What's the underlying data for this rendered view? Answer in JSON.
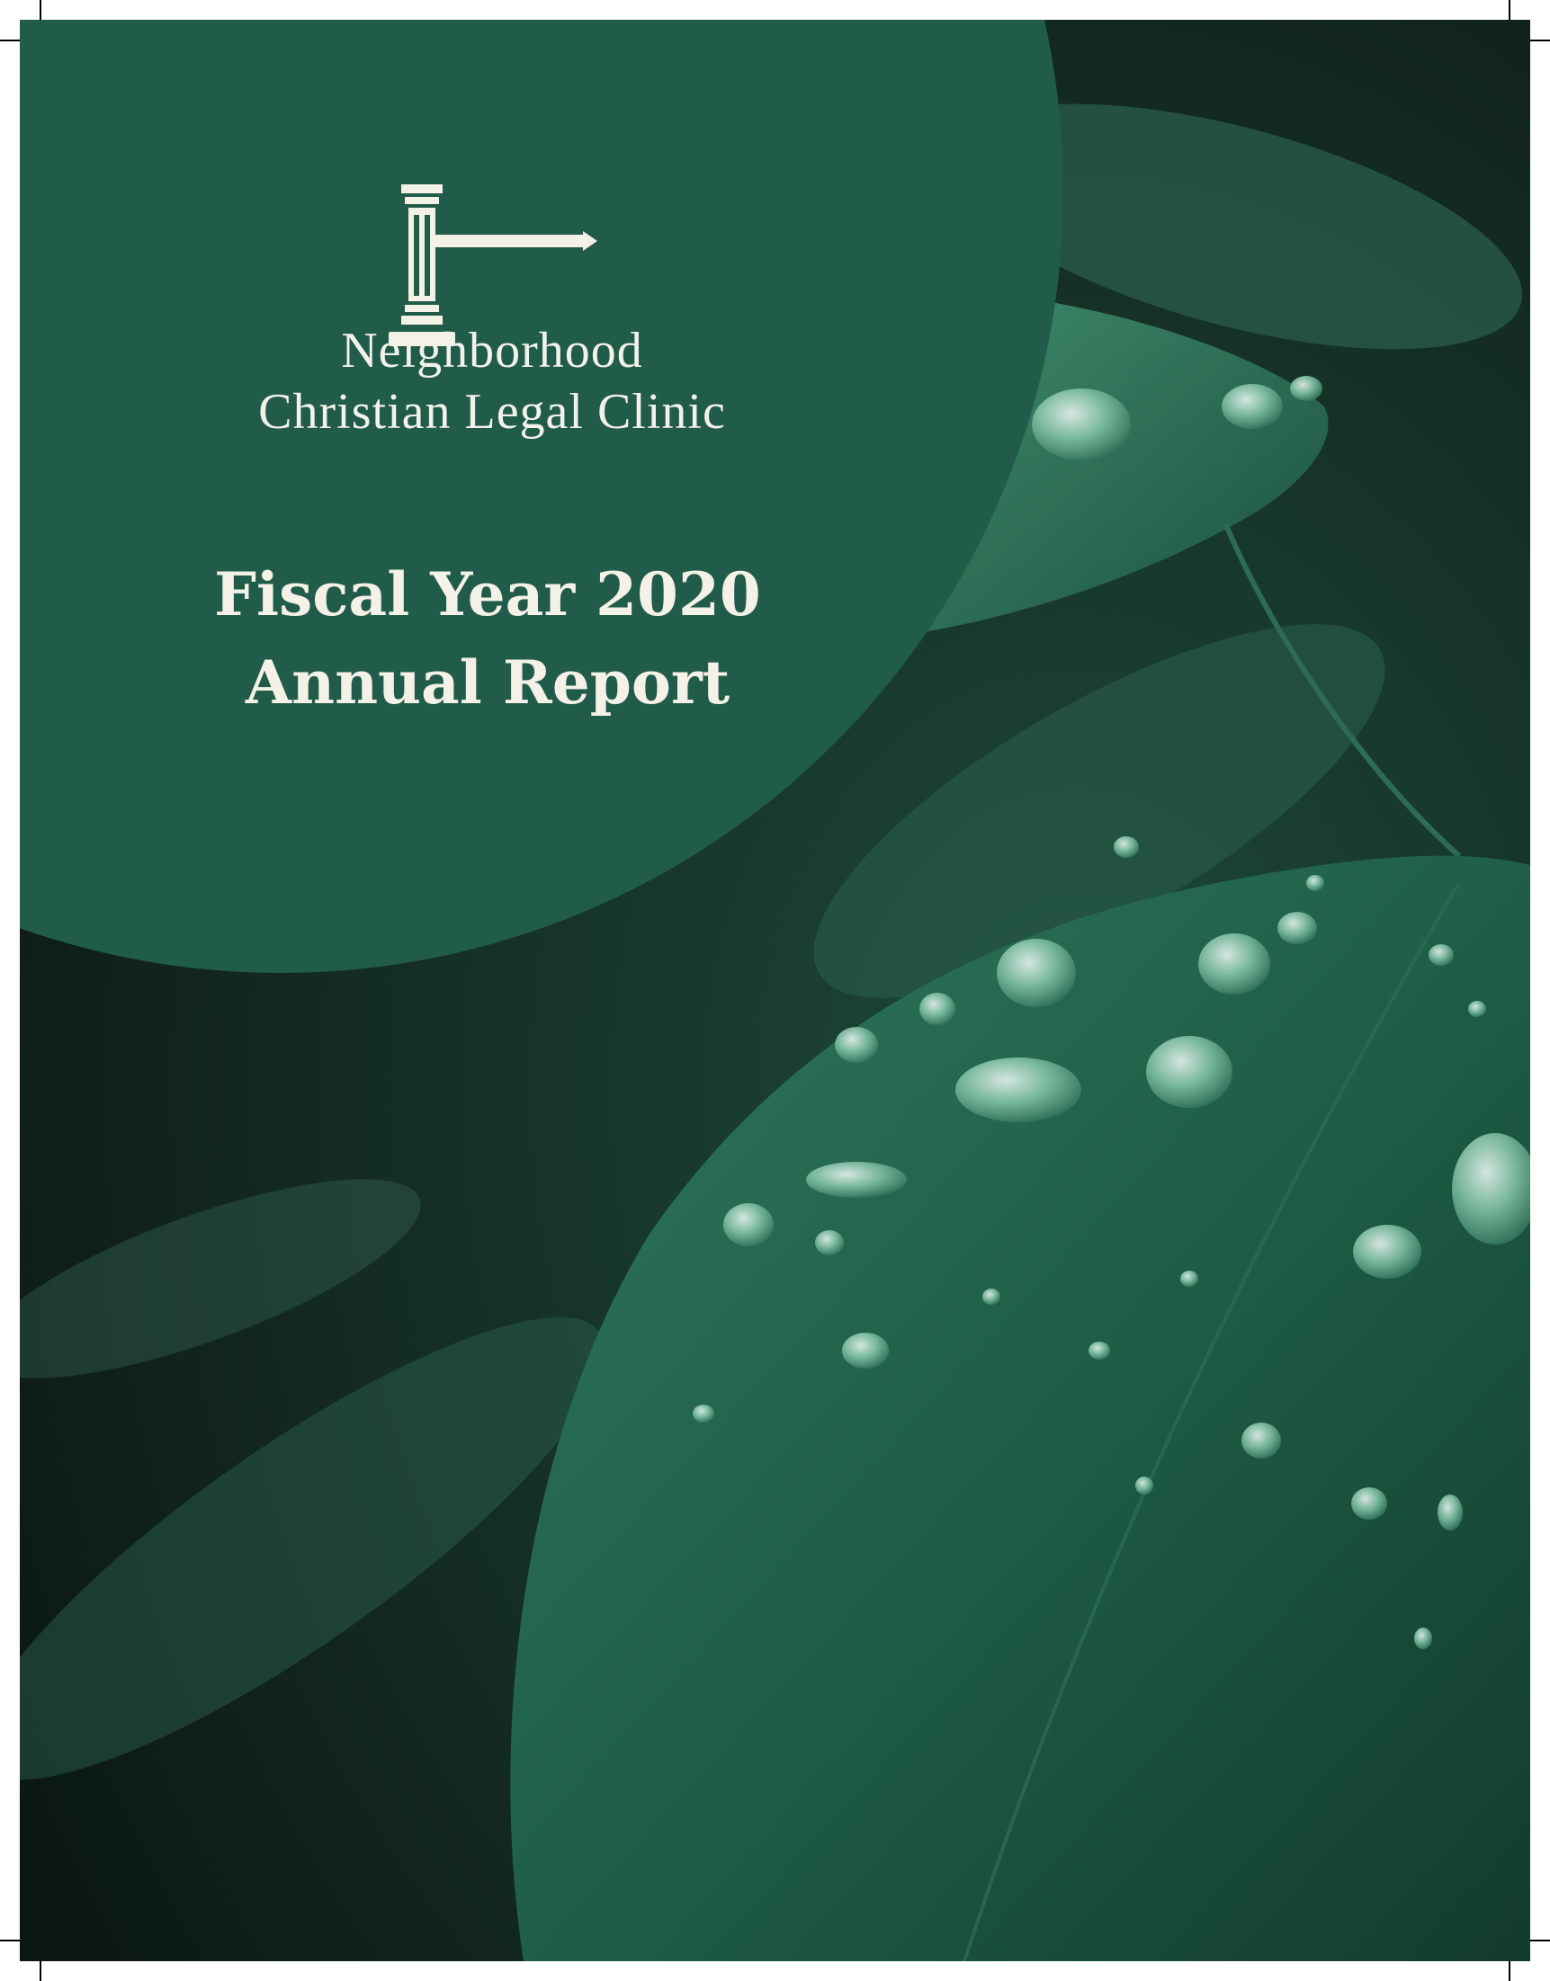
{
  "cover": {
    "org_line1": "Neighborhood",
    "org_line2": "Christian Legal Clinic",
    "title_line1": "Fiscal Year 2020",
    "title_line2": "Annual Report",
    "logo_icon": "gavel-icon",
    "background": "water-droplets-on-leaves-photo",
    "colors": {
      "circle": "#215b49",
      "text": "#f4f1e6"
    }
  }
}
